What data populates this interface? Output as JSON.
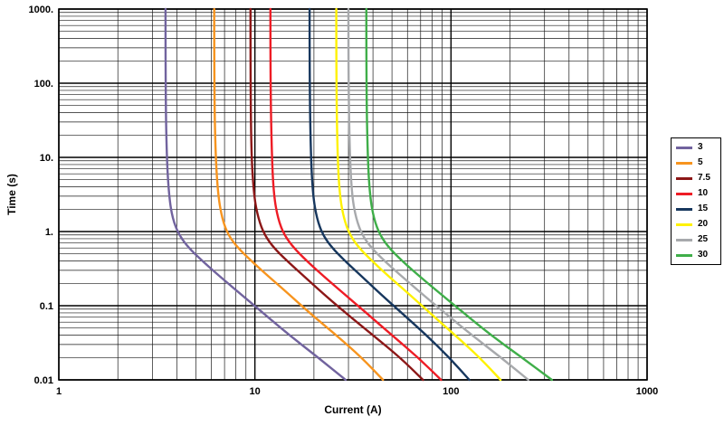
{
  "chart_data": {
    "type": "line",
    "title": "",
    "xlabel": "Current (A)",
    "ylabel": "Time (s)",
    "x_scale": "log",
    "y_scale": "log",
    "xlim": [
      1,
      1000
    ],
    "ylim": [
      0.01,
      1000
    ],
    "grid": "major+minor",
    "legend_position": "right-outside",
    "x_ticks": [
      {
        "value": 1,
        "label": "1"
      },
      {
        "value": 10,
        "label": "10"
      },
      {
        "value": 100,
        "label": "100"
      },
      {
        "value": 1000,
        "label": "1000"
      }
    ],
    "y_ticks": [
      {
        "value": 1000,
        "label": "1000."
      },
      {
        "value": 100,
        "label": "100."
      },
      {
        "value": 10,
        "label": "10."
      },
      {
        "value": 1,
        "label": "1."
      },
      {
        "value": 0.1,
        "label": "0.1"
      },
      {
        "value": 0.01,
        "label": "0.01"
      }
    ],
    "series": [
      {
        "name": "3",
        "color": "#71639E",
        "points": [
          [
            3.5,
            1000
          ],
          [
            3.5,
            100
          ],
          [
            3.55,
            10
          ],
          [
            3.65,
            3
          ],
          [
            3.8,
            1.5
          ],
          [
            4.1,
            0.9
          ],
          [
            4.6,
            0.6
          ],
          [
            5.4,
            0.4
          ],
          [
            6.6,
            0.25
          ],
          [
            8.3,
            0.15
          ],
          [
            11,
            0.08
          ],
          [
            15,
            0.04
          ],
          [
            21,
            0.02
          ],
          [
            29,
            0.01
          ]
        ]
      },
      {
        "name": "5",
        "color": "#F7941E",
        "points": [
          [
            6.2,
            1000
          ],
          [
            6.2,
            100
          ],
          [
            6.3,
            10
          ],
          [
            6.5,
            3
          ],
          [
            6.8,
            1.5
          ],
          [
            7.3,
            0.9
          ],
          [
            8.2,
            0.6
          ],
          [
            9.6,
            0.4
          ],
          [
            11.7,
            0.25
          ],
          [
            14.6,
            0.15
          ],
          [
            19,
            0.08
          ],
          [
            26,
            0.04
          ],
          [
            35,
            0.02
          ],
          [
            45,
            0.01
          ]
        ]
      },
      {
        "name": "7.5",
        "color": "#8C1717",
        "points": [
          [
            9.5,
            1000
          ],
          [
            9.5,
            100
          ],
          [
            9.6,
            10
          ],
          [
            9.9,
            3
          ],
          [
            10.4,
            1.5
          ],
          [
            11.2,
            0.9
          ],
          [
            12.5,
            0.6
          ],
          [
            14.6,
            0.4
          ],
          [
            17.8,
            0.25
          ],
          [
            22,
            0.15
          ],
          [
            29,
            0.08
          ],
          [
            40,
            0.04
          ],
          [
            55,
            0.02
          ],
          [
            72,
            0.01
          ]
        ]
      },
      {
        "name": "10",
        "color": "#EE1C25",
        "points": [
          [
            12,
            1000
          ],
          [
            12,
            100
          ],
          [
            12.2,
            10
          ],
          [
            12.5,
            3
          ],
          [
            13.1,
            1.5
          ],
          [
            14.1,
            0.9
          ],
          [
            15.8,
            0.6
          ],
          [
            18.4,
            0.4
          ],
          [
            22.4,
            0.25
          ],
          [
            28,
            0.15
          ],
          [
            37,
            0.08
          ],
          [
            50,
            0.04
          ],
          [
            68,
            0.02
          ],
          [
            89,
            0.01
          ]
        ]
      },
      {
        "name": "15",
        "color": "#17375E",
        "points": [
          [
            19,
            1000
          ],
          [
            19,
            100
          ],
          [
            19.3,
            10
          ],
          [
            19.8,
            3
          ],
          [
            20.7,
            1.5
          ],
          [
            22.2,
            0.9
          ],
          [
            24.8,
            0.6
          ],
          [
            28.8,
            0.4
          ],
          [
            35,
            0.25
          ],
          [
            43,
            0.15
          ],
          [
            56,
            0.08
          ],
          [
            75,
            0.04
          ],
          [
            98,
            0.02
          ],
          [
            124,
            0.01
          ]
        ]
      },
      {
        "name": "20",
        "color": "#FFF200",
        "points": [
          [
            26,
            1000
          ],
          [
            26,
            100
          ],
          [
            26.4,
            10
          ],
          [
            27.1,
            3
          ],
          [
            28.4,
            1.5
          ],
          [
            30.5,
            0.9
          ],
          [
            34,
            0.6
          ],
          [
            39.6,
            0.4
          ],
          [
            48,
            0.25
          ],
          [
            60,
            0.15
          ],
          [
            78,
            0.08
          ],
          [
            105,
            0.04
          ],
          [
            140,
            0.02
          ],
          [
            179,
            0.01
          ]
        ]
      },
      {
        "name": "25",
        "color": "#A7A9AC",
        "points": [
          [
            30,
            1000
          ],
          [
            30,
            100
          ],
          [
            30.5,
            10
          ],
          [
            31.3,
            3
          ],
          [
            32.8,
            1.5
          ],
          [
            35.2,
            0.9
          ],
          [
            39.3,
            0.6
          ],
          [
            45.8,
            0.4
          ],
          [
            56,
            0.25
          ],
          [
            70,
            0.15
          ],
          [
            93,
            0.08
          ],
          [
            128,
            0.04
          ],
          [
            180,
            0.02
          ],
          [
            248,
            0.01
          ]
        ]
      },
      {
        "name": "30",
        "color": "#3FAE49",
        "points": [
          [
            37,
            1000
          ],
          [
            37,
            100
          ],
          [
            37.6,
            10
          ],
          [
            38.6,
            3
          ],
          [
            40.4,
            1.5
          ],
          [
            43.4,
            0.9
          ],
          [
            48.4,
            0.6
          ],
          [
            56.4,
            0.4
          ],
          [
            69,
            0.25
          ],
          [
            87,
            0.15
          ],
          [
            116,
            0.08
          ],
          [
            160,
            0.04
          ],
          [
            230,
            0.02
          ],
          [
            327,
            0.01
          ]
        ]
      }
    ]
  }
}
